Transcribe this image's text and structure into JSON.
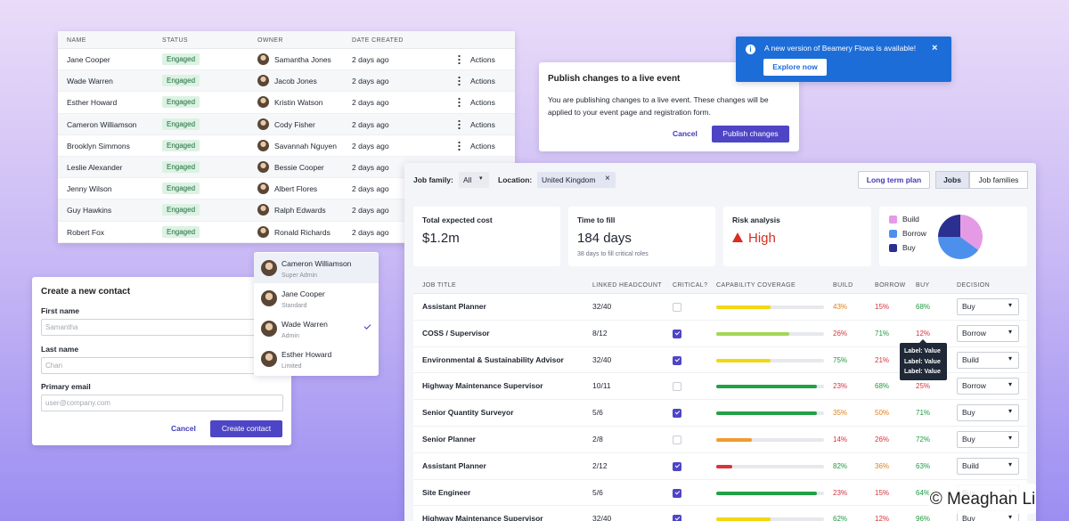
{
  "contacts_table": {
    "columns": [
      "NAME",
      "STATUS",
      "OWNER",
      "DATE CREATED"
    ],
    "rows": [
      {
        "name": "Jane Cooper",
        "status": "Engaged",
        "owner": "Samantha Jones",
        "date": "2 days ago",
        "action": "Actions"
      },
      {
        "name": "Wade Warren",
        "status": "Engaged",
        "owner": "Jacob Jones",
        "date": "2 days ago",
        "action": "Actions"
      },
      {
        "name": "Esther Howard",
        "status": "Engaged",
        "owner": "Kristin Watson",
        "date": "2 days ago",
        "action": "Actions"
      },
      {
        "name": "Cameron Williamson",
        "status": "Engaged",
        "owner": "Cody Fisher",
        "date": "2 days ago",
        "action": "Actions"
      },
      {
        "name": "Brooklyn Simmons",
        "status": "Engaged",
        "owner": "Savannah Nguyen",
        "date": "2 days ago",
        "action": "Actions"
      },
      {
        "name": "Leslie Alexander",
        "status": "Engaged",
        "owner": "Bessie Cooper",
        "date": "2 days ago"
      },
      {
        "name": "Jenny Wilson",
        "status": "Engaged",
        "owner": "Albert Flores",
        "date": "2 days ago"
      },
      {
        "name": "Guy Hawkins",
        "status": "Engaged",
        "owner": "Ralph Edwards",
        "date": "2 days ago"
      },
      {
        "name": "Robert Fox",
        "status": "Engaged",
        "owner": "Ronald Richards",
        "date": "2 days ago"
      }
    ]
  },
  "create_contact": {
    "title": "Create a new contact",
    "fields": [
      {
        "label": "First name",
        "placeholder": "Samantha"
      },
      {
        "label": "Last name",
        "placeholder": "Chan"
      },
      {
        "label": "Primary email",
        "placeholder": "user@company.com"
      }
    ],
    "cancel": "Cancel",
    "submit": "Create contact"
  },
  "user_menu": {
    "items": [
      {
        "name": "Cameron Williamson",
        "role": "Super Admin",
        "highlighted": true
      },
      {
        "name": "Jane Cooper",
        "role": "Standard"
      },
      {
        "name": "Wade Warren",
        "role": "Admin",
        "checked": true
      },
      {
        "name": "Esther Howard",
        "role": "Limited"
      }
    ]
  },
  "publish_dialog": {
    "title": "Publish changes to a live event",
    "body": "You are publishing changes to a live event. These changes will be applied to your event page and registration form.",
    "cancel": "Cancel",
    "confirm": "Publish changes"
  },
  "notification": {
    "message": "A new version of Beamery Flows is available!",
    "button": "Explore now"
  },
  "dashboard": {
    "filters": {
      "job_family_label": "Job family:",
      "job_family_value": "All",
      "location_label": "Location:",
      "location_value": "United Kingdom"
    },
    "plan_button": "Long term plan",
    "tabs": [
      "Jobs",
      "Job families"
    ],
    "cards": {
      "cost_label": "Total expected cost",
      "cost_value": "$1.2m",
      "time_label": "Time to fill",
      "time_value": "184 days",
      "time_note": "38 days to fill critical roles",
      "risk_label": "Risk analysis",
      "risk_value": "High"
    },
    "pie": {
      "type": "pie",
      "series": [
        {
          "name": "Build",
          "color": "#e59ae6",
          "value": 35
        },
        {
          "name": "Borrow",
          "color": "#4d90ec",
          "value": 40
        },
        {
          "name": "Buy",
          "color": "#2b2f8f",
          "value": 25
        }
      ]
    },
    "table": {
      "columns": [
        "JOB TITLE",
        "LINKED HEADCOUNT",
        "CRITICAL?",
        "CAPABILITY COVERAGE",
        "BUILD",
        "BORROW",
        "BUY",
        "DECISION"
      ],
      "rows": [
        {
          "title": "Assistant Planner",
          "headcount": "32/40",
          "critical": false,
          "coverage": 50,
          "coverage_color": "#f3d712",
          "build": "43%",
          "borrow": "15%",
          "buy": "68%",
          "decision": "Buy"
        },
        {
          "title": "COSS / Supervisor",
          "headcount": "8/12",
          "critical": true,
          "coverage": 68,
          "coverage_color": "#a5d55a",
          "build": "26%",
          "borrow": "71%",
          "buy": "12%",
          "decision": "Borrow"
        },
        {
          "title": "Environmental & Sustainability Advisor",
          "headcount": "32/40",
          "critical": true,
          "coverage": 50,
          "coverage_color": "#f3d712",
          "build": "75%",
          "borrow": "21%",
          "buy": null,
          "decision": "Build"
        },
        {
          "title": "Highway Maintenance Supervisor",
          "headcount": "10/11",
          "critical": false,
          "coverage": 93,
          "coverage_color": "#22a045",
          "build": "23%",
          "borrow": "68%",
          "buy": "25%",
          "decision": "Borrow"
        },
        {
          "title": "Senior Quantity Surveyor",
          "headcount": "5/6",
          "critical": true,
          "coverage": 93,
          "coverage_color": "#22a045",
          "build": "35%",
          "borrow": "50%",
          "buy": "71%",
          "decision": "Buy"
        },
        {
          "title": "Senior Planner",
          "headcount": "2/8",
          "critical": false,
          "coverage": 33,
          "coverage_color": "#f29a30",
          "build": "14%",
          "borrow": "26%",
          "buy": "72%",
          "decision": "Buy"
        },
        {
          "title": "Assistant Planner",
          "headcount": "2/12",
          "critical": true,
          "coverage": 15,
          "coverage_color": "#d8343c",
          "build": "82%",
          "borrow": "36%",
          "buy": "63%",
          "decision": "Build"
        },
        {
          "title": "Site Engineer",
          "headcount": "5/6",
          "critical": true,
          "coverage": 93,
          "coverage_color": "#22a045",
          "build": "23%",
          "borrow": "15%",
          "buy": "64%",
          "decision": "Buy"
        },
        {
          "title": "Highway Maintenance Supervisor",
          "headcount": "32/40",
          "critical": true,
          "coverage": 50,
          "coverage_color": "#f3d712",
          "build": "62%",
          "borrow": "12%",
          "buy": "96%",
          "decision": "Buy"
        }
      ]
    },
    "tooltip": [
      "Label: Value",
      "Label: Value",
      "Label: Value"
    ]
  },
  "watermark": "© Meaghan Li"
}
